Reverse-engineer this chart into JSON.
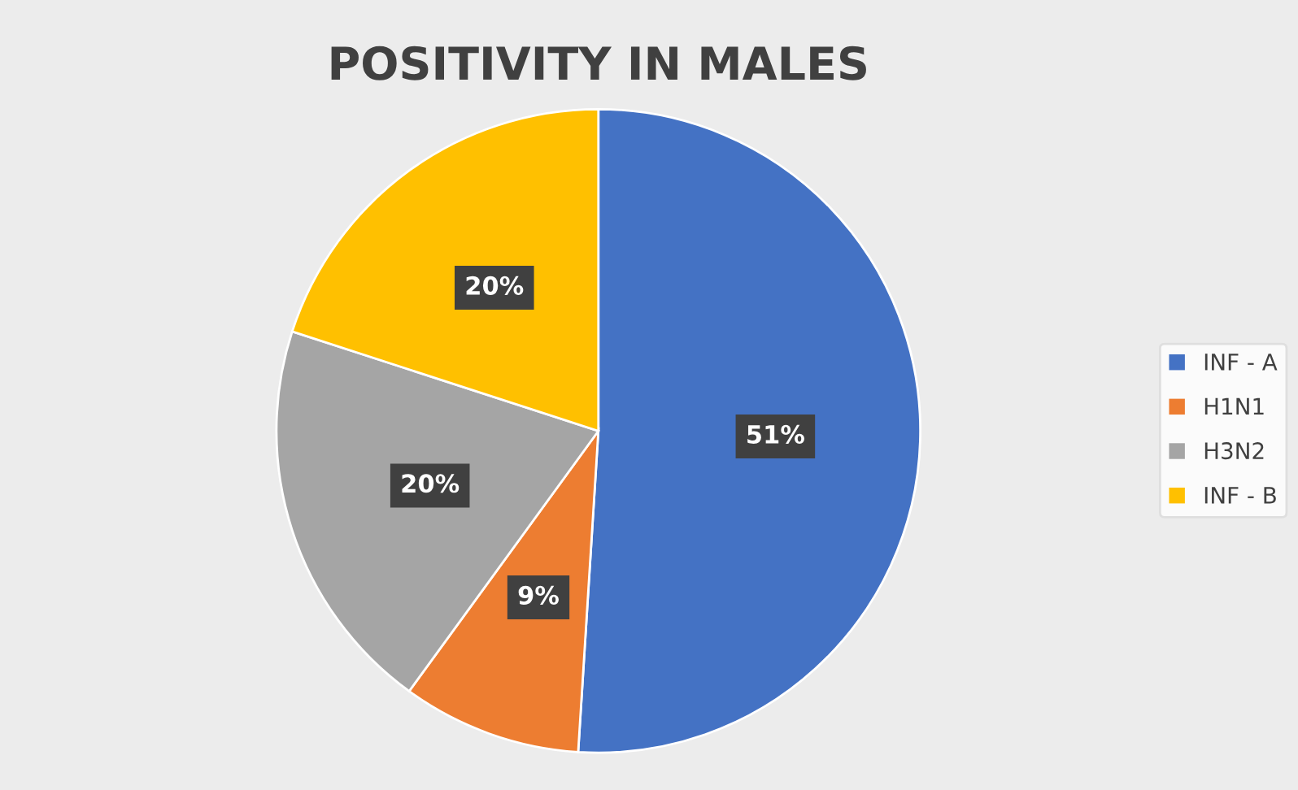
{
  "chart_data": {
    "type": "pie",
    "title": "POSITIVITY IN MALES",
    "categories": [
      "INF - A",
      "H1N1",
      "H3N2",
      "INF - B"
    ],
    "values": [
      51,
      9,
      20,
      20
    ],
    "colors": [
      "#4472c4",
      "#ed7d31",
      "#a5a5a5",
      "#ffc000"
    ],
    "value_labels": [
      "51%",
      "9%",
      "20%",
      "20%"
    ],
    "legend": "right"
  }
}
